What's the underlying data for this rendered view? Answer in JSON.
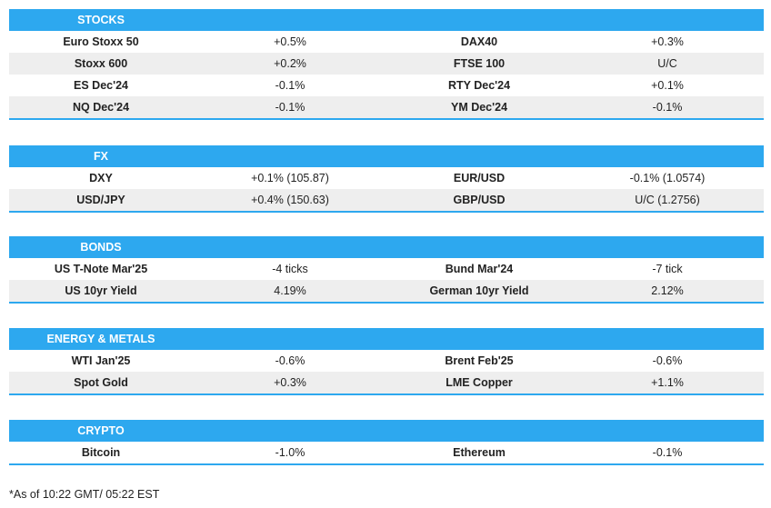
{
  "sections": [
    {
      "title": "STOCKS",
      "rows": [
        [
          "Euro Stoxx 50",
          "+0.5%",
          "DAX40",
          "+0.3%"
        ],
        [
          "Stoxx 600",
          "+0.2%",
          "FTSE 100",
          "U/C"
        ],
        [
          "ES Dec'24",
          "-0.1%",
          "RTY Dec'24",
          "+0.1%"
        ],
        [
          "NQ Dec'24",
          "-0.1%",
          "YM Dec'24",
          "-0.1%"
        ]
      ]
    },
    {
      "title": "FX",
      "rows": [
        [
          "DXY",
          "+0.1% (105.87)",
          "EUR/USD",
          "-0.1% (1.0574)"
        ],
        [
          "USD/JPY",
          "+0.4% (150.63)",
          "GBP/USD",
          "U/C (1.2756)"
        ]
      ]
    },
    {
      "title": "BONDS",
      "rows": [
        [
          "US T-Note Mar'25",
          "-4 ticks",
          "Bund Mar'24",
          "-7 tick"
        ],
        [
          "US 10yr Yield",
          "4.19%",
          "German 10yr Yield",
          "2.12%"
        ]
      ]
    },
    {
      "title": "ENERGY & METALS",
      "rows": [
        [
          "WTI Jan'25",
          "-0.6%",
          "Brent Feb'25",
          "-0.6%"
        ],
        [
          "Spot Gold",
          "+0.3%",
          "LME Copper",
          "+1.1%"
        ]
      ]
    },
    {
      "title": "CRYPTO",
      "rows": [
        [
          "Bitcoin",
          "-1.0%",
          "Ethereum",
          "-0.1%"
        ]
      ]
    }
  ],
  "footnote": "*As of 10:22 GMT/ 05:22 EST",
  "colors": {
    "header_bg": "#2da8ef",
    "alt_row_bg": "#eeeeee"
  }
}
